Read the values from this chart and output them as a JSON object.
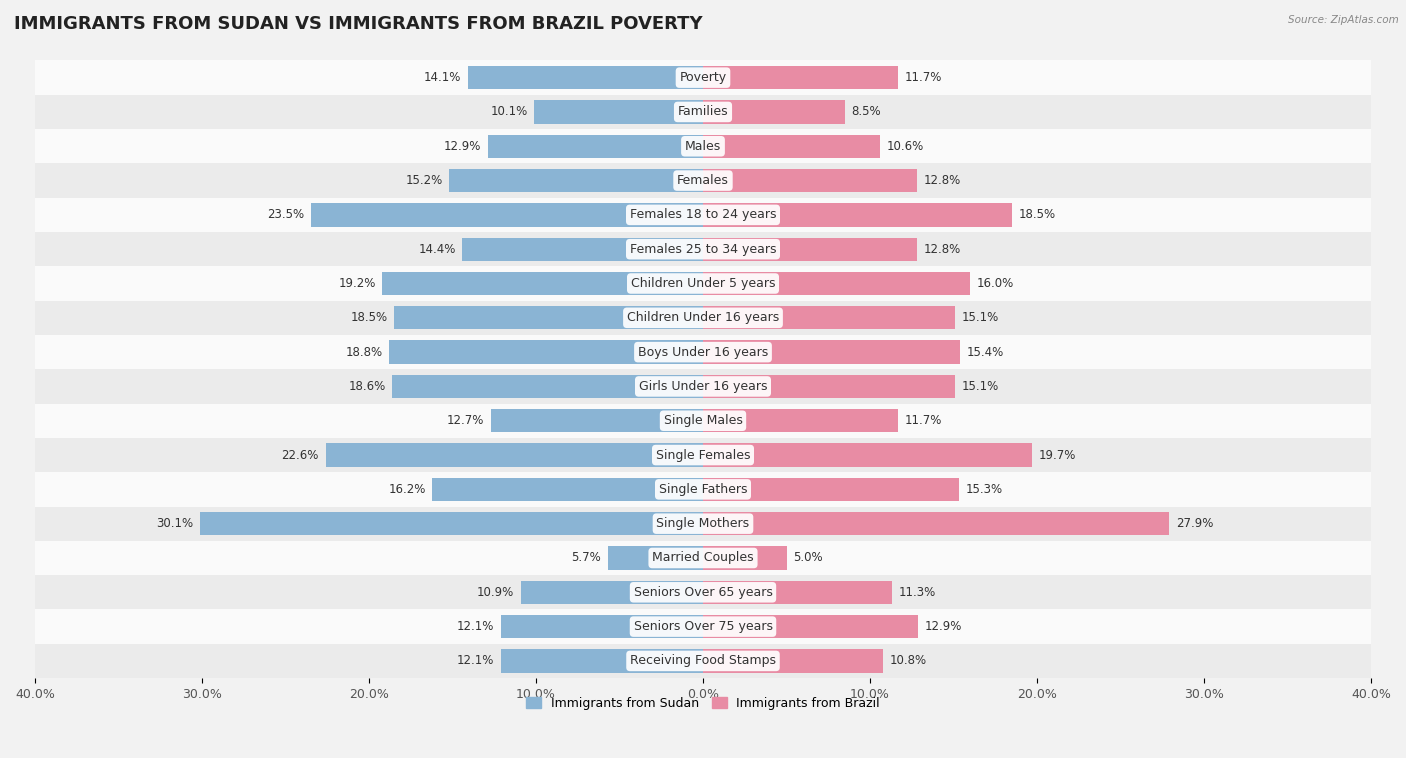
{
  "title": "IMMIGRANTS FROM SUDAN VS IMMIGRANTS FROM BRAZIL POVERTY",
  "source": "Source: ZipAtlas.com",
  "categories": [
    "Poverty",
    "Families",
    "Males",
    "Females",
    "Females 18 to 24 years",
    "Females 25 to 34 years",
    "Children Under 5 years",
    "Children Under 16 years",
    "Boys Under 16 years",
    "Girls Under 16 years",
    "Single Males",
    "Single Females",
    "Single Fathers",
    "Single Mothers",
    "Married Couples",
    "Seniors Over 65 years",
    "Seniors Over 75 years",
    "Receiving Food Stamps"
  ],
  "sudan_values": [
    14.1,
    10.1,
    12.9,
    15.2,
    23.5,
    14.4,
    19.2,
    18.5,
    18.8,
    18.6,
    12.7,
    22.6,
    16.2,
    30.1,
    5.7,
    10.9,
    12.1,
    12.1
  ],
  "brazil_values": [
    11.7,
    8.5,
    10.6,
    12.8,
    18.5,
    12.8,
    16.0,
    15.1,
    15.4,
    15.1,
    11.7,
    19.7,
    15.3,
    27.9,
    5.0,
    11.3,
    12.9,
    10.8
  ],
  "sudan_color": "#8ab4d4",
  "brazil_color": "#e88ca4",
  "sudan_label": "Immigrants from Sudan",
  "brazil_label": "Immigrants from Brazil",
  "xlim": 40.0,
  "bar_height": 0.68,
  "background_color": "#f2f2f2",
  "row_colors": [
    "#fafafa",
    "#ebebeb"
  ],
  "title_fontsize": 13,
  "label_fontsize": 9,
  "value_fontsize": 8.5,
  "axis_label_fontsize": 9,
  "legend_fontsize": 9
}
